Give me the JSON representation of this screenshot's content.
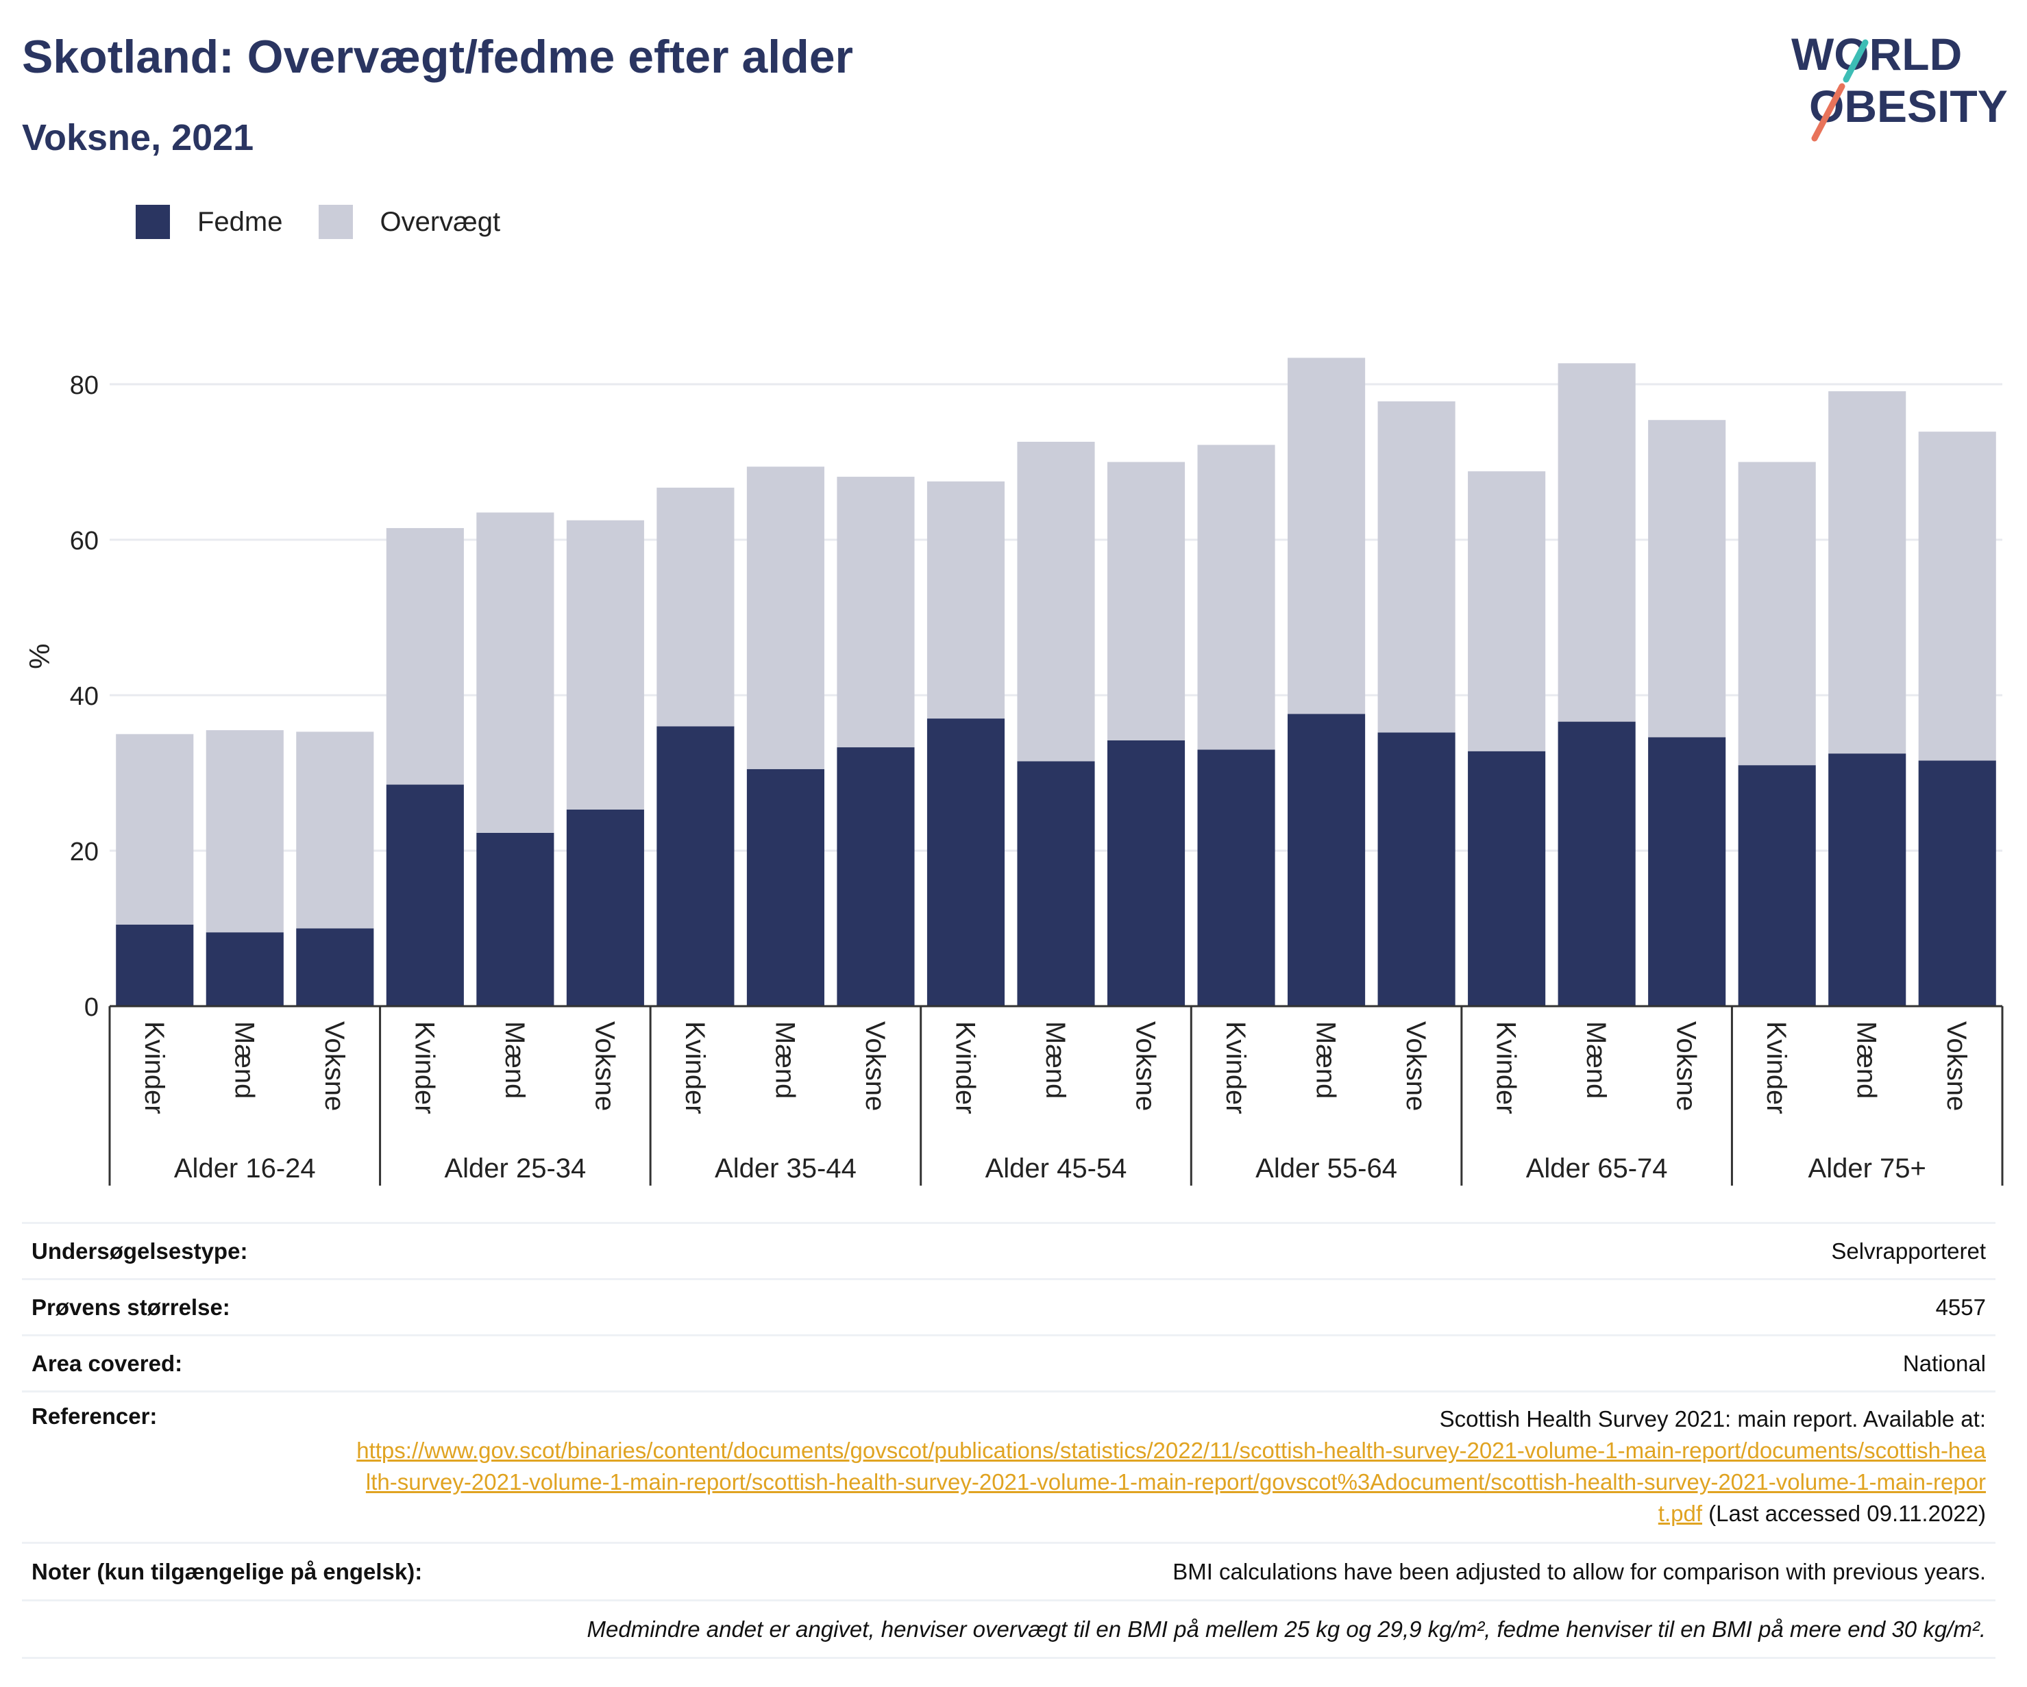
{
  "title": "Skotland: Overvægt/fedme efter alder",
  "subtitle": "Voksne, 2021",
  "logo": {
    "line1": "WORLD",
    "line2": "OBESITY"
  },
  "colors": {
    "fedme": "#2a3561",
    "overvaegt": "#cbcdd9",
    "text": "#2a3561",
    "link": "#e0a321",
    "grid": "#e8eaef"
  },
  "legend": [
    {
      "label": "Fedme",
      "color": "#2a3561"
    },
    {
      "label": "Overvægt",
      "color": "#cbcdd9"
    }
  ],
  "chart_data": {
    "type": "bar",
    "stacked": true,
    "ylabel": "%",
    "ylim": [
      0,
      90
    ],
    "yticks": [
      0,
      20,
      40,
      60,
      80
    ],
    "grid": true,
    "legend_position": "top-left",
    "groups": [
      "Alder 16-24",
      "Alder 25-34",
      "Alder 35-44",
      "Alder 45-54",
      "Alder 55-64",
      "Alder 65-74",
      "Alder 75+"
    ],
    "subcategories": [
      "Kvinder",
      "Mænd",
      "Voksne"
    ],
    "series": [
      {
        "name": "Fedme",
        "values": [
          10.5,
          9.5,
          10,
          28.5,
          22.3,
          25.3,
          36,
          30.5,
          33.3,
          37,
          31.5,
          34.2,
          33,
          37.6,
          35.2,
          32.8,
          36.6,
          34.6,
          31,
          32.5,
          31.6
        ]
      },
      {
        "name": "Overvægt",
        "values": [
          24.5,
          26,
          25.3,
          33,
          41.2,
          37.2,
          30.7,
          38.9,
          34.8,
          30.5,
          41.1,
          35.8,
          39.2,
          45.8,
          42.6,
          36,
          46.1,
          40.8,
          39,
          46.6,
          42.3
        ]
      }
    ]
  },
  "info": [
    {
      "label": "Undersøgelsestype:",
      "value": "Selvrapporteret"
    },
    {
      "label": "Prøvens størrelse:",
      "value": "4557"
    },
    {
      "label": "Area covered:",
      "value": "National"
    }
  ],
  "references": {
    "label": "Referencer:",
    "text": "Scottish Health Survey 2021: main report. Available at:",
    "url": "https://www.gov.scot/binaries/content/documents/govscot/publications/statistics/2022/11/scottish-health-survey-2021-volume-1-main-report/documents/scottish-health-survey-2021-volume-1-main-report/scottish-health-survey-2021-volume-1-main-report/govscot%3Adocument/scottish-health-survey-2021-volume-1-main-report.pdf",
    "suffix": "(Last accessed 09.11.2022)"
  },
  "notes": {
    "label": "Noter (kun tilgængelige på engelsk):",
    "value": "BMI calculations have been adjusted to allow for comparison with previous years."
  },
  "footnote": "Medmindre andet er angivet, henviser overvægt til en BMI på mellem 25 kg og 29,9 kg/m², fedme henviser til en BMI på mere end 30 kg/m²."
}
